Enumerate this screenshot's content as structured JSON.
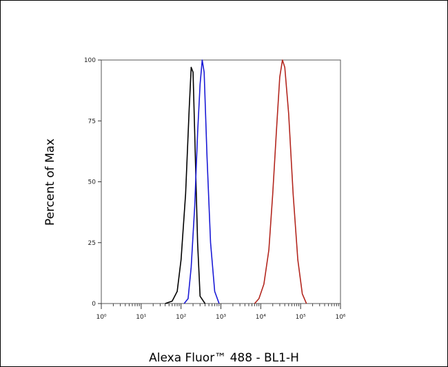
{
  "chart_data": {
    "type": "line",
    "title": "",
    "xlabel": "Alexa Fluor™ 488 - BL1-H",
    "ylabel": "Percent of Max",
    "x_scale": "log",
    "xlim": [
      1,
      1000000
    ],
    "ylim": [
      0,
      100
    ],
    "x_tick_labels": [
      "10⁰",
      "10¹",
      "10²",
      "10³",
      "10⁴",
      "10⁵",
      "10⁶"
    ],
    "x_tick_values": [
      1,
      10,
      100,
      1000,
      10000,
      100000,
      1000000
    ],
    "y_ticks": [
      0,
      25,
      50,
      75,
      100
    ],
    "grid": false,
    "legend": "none",
    "series": [
      {
        "color": "#000000",
        "x": [
          40,
          60,
          80,
          100,
          130,
          160,
          180,
          200,
          220,
          260,
          300,
          400
        ],
        "y": [
          0,
          1,
          5,
          18,
          45,
          80,
          97,
          95,
          70,
          25,
          3,
          0
        ]
      },
      {
        "color": "#1a1ad6",
        "x": [
          120,
          150,
          180,
          220,
          260,
          300,
          340,
          380,
          450,
          550,
          700,
          900
        ],
        "y": [
          0,
          2,
          15,
          40,
          70,
          90,
          100,
          95,
          60,
          25,
          5,
          0
        ]
      },
      {
        "color": "#b3261e",
        "x": [
          7000,
          9000,
          12000,
          16000,
          20000,
          25000,
          30000,
          35000,
          40000,
          50000,
          65000,
          85000,
          110000,
          140000
        ],
        "y": [
          0,
          2,
          8,
          22,
          45,
          72,
          93,
          100,
          97,
          78,
          45,
          18,
          4,
          0
        ]
      }
    ]
  }
}
